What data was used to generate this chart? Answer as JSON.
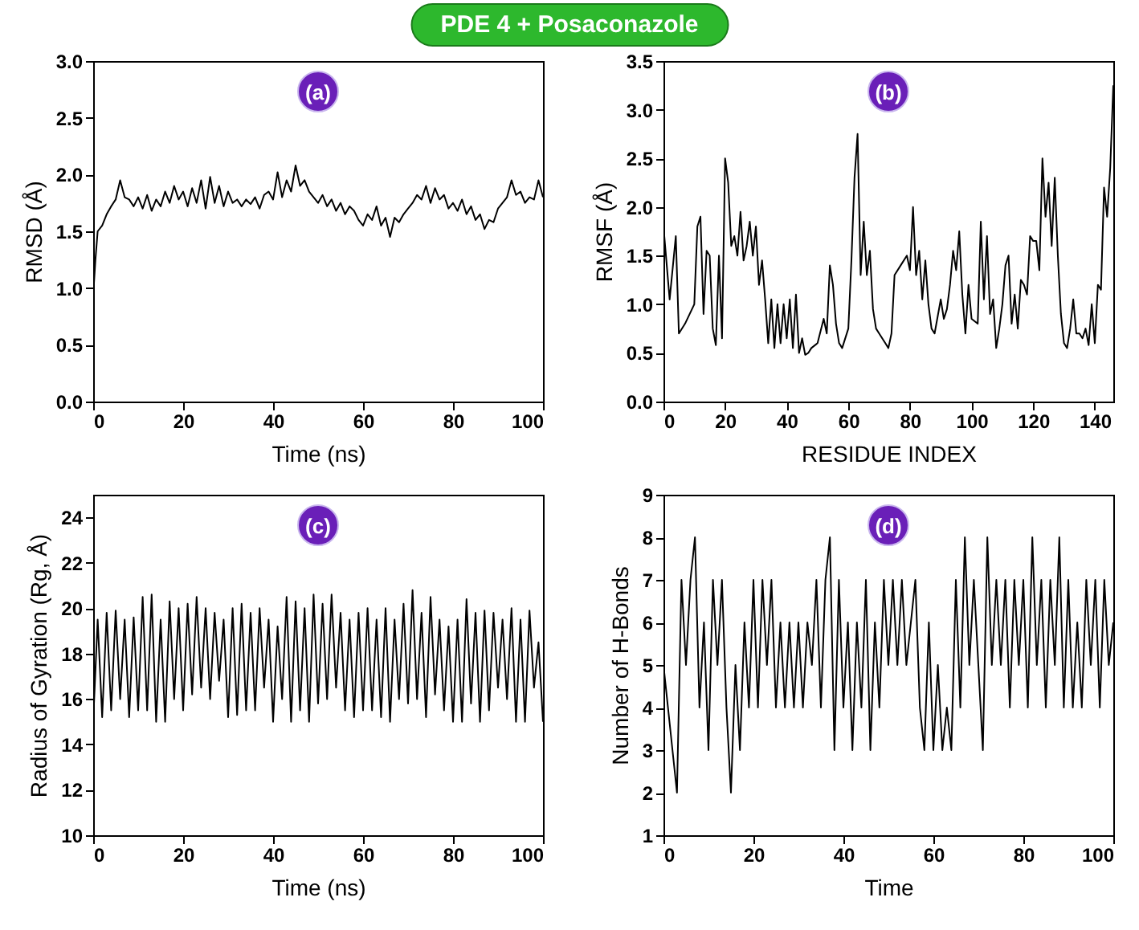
{
  "chart_data": [
    {
      "type": "line",
      "title": "PDE 4 + Posaconazole",
      "annotations": [
        "(a)"
      ],
      "xlabel": "Time (ns)",
      "ylabel": "RMSD (Å)",
      "color": "#000000",
      "xlim": [
        0,
        100
      ],
      "ylim": [
        0,
        3
      ],
      "xticks": [
        0,
        20,
        40,
        60,
        80,
        100
      ],
      "yticks": [
        {
          "value": 0,
          "label": "0.0"
        },
        {
          "value": 0.5,
          "label": "0.5"
        },
        {
          "value": 1,
          "label": "1.0"
        },
        {
          "value": 1.5,
          "label": "1.5"
        },
        {
          "value": 2,
          "label": "2.0"
        },
        {
          "value": 2.5,
          "label": "2.5"
        },
        {
          "value": 3,
          "label": "3.0"
        }
      ],
      "x": [
        0,
        0.5,
        1,
        2,
        3,
        4,
        5,
        6,
        7,
        8,
        9,
        10,
        11,
        12,
        13,
        14,
        15,
        16,
        17,
        18,
        19,
        20,
        21,
        22,
        23,
        24,
        25,
        26,
        27,
        28,
        29,
        30,
        31,
        32,
        33,
        34,
        35,
        36,
        37,
        38,
        39,
        40,
        41,
        42,
        43,
        44,
        45,
        46,
        47,
        48,
        49,
        50,
        51,
        52,
        53,
        54,
        55,
        56,
        57,
        58,
        59,
        60,
        61,
        62,
        63,
        64,
        65,
        66,
        67,
        68,
        69,
        70,
        71,
        72,
        73,
        74,
        75,
        76,
        77,
        78,
        79,
        80,
        81,
        82,
        83,
        84,
        85,
        86,
        87,
        88,
        89,
        90,
        91,
        92,
        93,
        94,
        95,
        96,
        97,
        98,
        99,
        100
      ],
      "values": [
        0.93,
        1.25,
        1.5,
        1.55,
        1.65,
        1.72,
        1.78,
        1.95,
        1.8,
        1.78,
        1.72,
        1.8,
        1.7,
        1.82,
        1.68,
        1.78,
        1.72,
        1.85,
        1.75,
        1.9,
        1.78,
        1.85,
        1.72,
        1.88,
        1.75,
        1.95,
        1.7,
        1.98,
        1.75,
        1.9,
        1.72,
        1.85,
        1.75,
        1.78,
        1.72,
        1.78,
        1.74,
        1.8,
        1.7,
        1.82,
        1.85,
        1.78,
        2.02,
        1.8,
        1.95,
        1.85,
        2.08,
        1.9,
        1.95,
        1.85,
        1.8,
        1.75,
        1.82,
        1.72,
        1.78,
        1.68,
        1.75,
        1.65,
        1.72,
        1.68,
        1.6,
        1.55,
        1.65,
        1.6,
        1.72,
        1.55,
        1.62,
        1.45,
        1.62,
        1.58,
        1.65,
        1.7,
        1.75,
        1.82,
        1.78,
        1.9,
        1.75,
        1.88,
        1.78,
        1.82,
        1.7,
        1.75,
        1.68,
        1.78,
        1.65,
        1.72,
        1.6,
        1.65,
        1.52,
        1.6,
        1.58,
        1.7,
        1.75,
        1.8,
        1.95,
        1.82,
        1.85,
        1.75,
        1.8,
        1.78,
        1.95,
        1.8
      ]
    },
    {
      "type": "line",
      "annotations": [
        "(b)"
      ],
      "xlabel": "RESIDUE INDEX",
      "ylabel": "RMSF (Å)",
      "color": "#000000",
      "xlim": [
        0,
        146
      ],
      "ylim": [
        0,
        3.5
      ],
      "xticks": [
        0,
        20,
        40,
        60,
        80,
        100,
        120,
        140
      ],
      "yticks": [
        {
          "value": 0,
          "label": "0.0"
        },
        {
          "value": 0.5,
          "label": "0.5"
        },
        {
          "value": 1,
          "label": "1.0"
        },
        {
          "value": 1.5,
          "label": "1.5"
        },
        {
          "value": 2,
          "label": "2.0"
        },
        {
          "value": 2.5,
          "label": "2.5"
        },
        {
          "value": 3,
          "label": "3.0"
        },
        {
          "value": 3.5,
          "label": "3.5"
        }
      ],
      "x": [
        0,
        2,
        4,
        5,
        7,
        10,
        11,
        12,
        13,
        14,
        15,
        16,
        17,
        18,
        19,
        20,
        21,
        22,
        23,
        24,
        25,
        26,
        27,
        28,
        29,
        30,
        31,
        32,
        33,
        34,
        35,
        36,
        37,
        38,
        39,
        40,
        41,
        42,
        43,
        44,
        45,
        46,
        47,
        48,
        50,
        52,
        53,
        54,
        55,
        56,
        57,
        58,
        60,
        61,
        62,
        63,
        64,
        65,
        66,
        67,
        68,
        69,
        70,
        72,
        73,
        74,
        75,
        77,
        79,
        80,
        81,
        82,
        83,
        84,
        85,
        86,
        87,
        88,
        90,
        91,
        92,
        93,
        94,
        95,
        96,
        97,
        98,
        99,
        100,
        102,
        103,
        104,
        105,
        106,
        107,
        108,
        109,
        110,
        111,
        112,
        113,
        114,
        115,
        116,
        117,
        118,
        119,
        120,
        121,
        122,
        123,
        124,
        125,
        126,
        127,
        128,
        129,
        130,
        131,
        132,
        133,
        134,
        135,
        136,
        137,
        138,
        139,
        140,
        141,
        142,
        143,
        144,
        145,
        146
      ],
      "values": [
        1.8,
        1.05,
        1.7,
        0.7,
        0.8,
        1.0,
        1.8,
        1.9,
        0.9,
        1.55,
        1.5,
        0.75,
        0.58,
        1.5,
        0.65,
        2.5,
        2.25,
        1.6,
        1.7,
        1.5,
        1.95,
        1.45,
        1.6,
        1.85,
        1.5,
        1.8,
        1.2,
        1.45,
        1.05,
        0.6,
        1.05,
        0.55,
        1.0,
        0.6,
        1.0,
        0.65,
        1.05,
        0.55,
        1.1,
        0.5,
        0.65,
        0.48,
        0.5,
        0.55,
        0.6,
        0.85,
        0.7,
        1.4,
        1.2,
        0.8,
        0.6,
        0.55,
        0.75,
        1.45,
        2.3,
        2.75,
        1.3,
        1.85,
        1.3,
        1.55,
        0.95,
        0.75,
        0.7,
        0.6,
        0.55,
        0.7,
        1.3,
        1.4,
        1.5,
        1.35,
        2.0,
        1.3,
        1.55,
        1.05,
        1.45,
        1.0,
        0.75,
        0.7,
        1.05,
        0.85,
        0.95,
        1.2,
        1.55,
        1.35,
        1.75,
        1.1,
        0.7,
        1.2,
        0.85,
        0.8,
        1.85,
        1.05,
        1.7,
        0.9,
        1.05,
        0.55,
        0.75,
        1.0,
        1.4,
        1.5,
        0.8,
        1.1,
        0.75,
        1.25,
        1.2,
        1.1,
        1.7,
        1.65,
        1.65,
        1.35,
        2.5,
        1.9,
        2.25,
        1.6,
        2.3,
        1.5,
        0.9,
        0.6,
        0.55,
        0.75,
        1.05,
        0.7,
        0.7,
        0.65,
        0.75,
        0.58,
        1.0,
        0.6,
        1.2,
        1.15,
        2.2,
        1.9,
        2.4,
        3.25
      ]
    },
    {
      "type": "line",
      "annotations": [
        "(c)"
      ],
      "xlabel": "Time (ns)",
      "ylabel": "Radius of Gyration (Rg, Å)",
      "color": "#000000",
      "xlim": [
        0,
        100
      ],
      "ylim": [
        10,
        25
      ],
      "xticks": [
        0,
        20,
        40,
        60,
        80,
        100
      ],
      "yticks": [
        10,
        12,
        14,
        16,
        18,
        20,
        22,
        24
      ],
      "x": [
        0,
        1,
        2,
        3,
        4,
        5,
        6,
        7,
        8,
        9,
        10,
        11,
        12,
        13,
        14,
        15,
        16,
        17,
        18,
        19,
        20,
        21,
        22,
        23,
        24,
        25,
        26,
        27,
        28,
        29,
        30,
        31,
        32,
        33,
        34,
        35,
        36,
        37,
        38,
        39,
        40,
        41,
        42,
        43,
        44,
        45,
        46,
        47,
        48,
        49,
        50,
        51,
        52,
        53,
        54,
        55,
        56,
        57,
        58,
        59,
        60,
        61,
        62,
        63,
        64,
        65,
        66,
        67,
        68,
        69,
        70,
        71,
        72,
        73,
        74,
        75,
        76,
        77,
        78,
        79,
        80,
        81,
        82,
        83,
        84,
        85,
        86,
        87,
        88,
        89,
        90,
        91,
        92,
        93,
        94,
        95,
        96,
        97,
        98,
        99,
        100
      ],
      "values": [
        15,
        19.5,
        15.2,
        19.8,
        15.5,
        19.9,
        16,
        19.5,
        15.2,
        19.6,
        15.5,
        20.5,
        15.5,
        20.6,
        15,
        19.5,
        15,
        20.3,
        16,
        20,
        15.5,
        20.2,
        16.2,
        20.5,
        16.5,
        20,
        16,
        19.8,
        16.8,
        19.5,
        15.2,
        20,
        15.3,
        20.2,
        15.5,
        19.8,
        15.5,
        20,
        16.5,
        19.5,
        15,
        19.2,
        16,
        20.5,
        15,
        20.3,
        15.5,
        20,
        15,
        20.6,
        15.8,
        20.2,
        16,
        20.6,
        16.5,
        19.8,
        15.5,
        19.5,
        15.2,
        19.8,
        15.5,
        20,
        15.5,
        19.5,
        15.2,
        20,
        15,
        19.5,
        16,
        20.2,
        15.8,
        20.8,
        16,
        19.8,
        15.2,
        20.5,
        16.2,
        19.5,
        15.5,
        19.2,
        15,
        19.5,
        15,
        20.4,
        15.8,
        19.8,
        15,
        19.9,
        15.5,
        19.8,
        16.5,
        19.5,
        16,
        20,
        15,
        19.5,
        15,
        19.9,
        16.5,
        18.5,
        15
      ]
    },
    {
      "type": "line",
      "annotations": [
        "(d)"
      ],
      "xlabel": "Time",
      "ylabel": "Number of H-Bonds",
      "color": "#000000",
      "xlim": [
        0,
        100
      ],
      "ylim": [
        1,
        9
      ],
      "xticks": [
        0,
        20,
        40,
        60,
        80,
        100
      ],
      "yticks": [
        1,
        2,
        3,
        4,
        5,
        6,
        7,
        8,
        9
      ],
      "x": [
        0,
        1,
        2,
        3,
        4,
        5,
        6,
        7,
        8,
        9,
        10,
        11,
        12,
        13,
        14,
        15,
        16,
        17,
        18,
        19,
        20,
        21,
        22,
        23,
        24,
        25,
        26,
        27,
        28,
        29,
        30,
        31,
        32,
        33,
        34,
        35,
        36,
        37,
        38,
        39,
        40,
        41,
        42,
        43,
        44,
        45,
        46,
        47,
        48,
        49,
        50,
        51,
        52,
        53,
        54,
        55,
        56,
        57,
        58,
        59,
        60,
        61,
        62,
        63,
        64,
        65,
        66,
        67,
        68,
        69,
        70,
        71,
        72,
        73,
        74,
        75,
        76,
        77,
        78,
        79,
        80,
        81,
        82,
        83,
        84,
        85,
        86,
        87,
        88,
        89,
        90,
        91,
        92,
        93,
        94,
        95,
        96,
        97,
        98,
        99,
        100
      ],
      "values": [
        5,
        4,
        3,
        2,
        7,
        5,
        7,
        8,
        4,
        6,
        3,
        7,
        5,
        7,
        4,
        2,
        5,
        3,
        6,
        4,
        7,
        4,
        7,
        5,
        7,
        4,
        6,
        4,
        6,
        4,
        6,
        4,
        6,
        5,
        7,
        4,
        7,
        8,
        3,
        7,
        4,
        6,
        3,
        6,
        4,
        7,
        3,
        6,
        4,
        7,
        5,
        7,
        5,
        7,
        5,
        6,
        7,
        4,
        3,
        6,
        3,
        5,
        3,
        4,
        3,
        7,
        4,
        8,
        5,
        7,
        5,
        3,
        8,
        5,
        7,
        5,
        7,
        4,
        7,
        5,
        7,
        4,
        8,
        5,
        7,
        4,
        7,
        5,
        8,
        4,
        7,
        4,
        6,
        4,
        7,
        5,
        7,
        4,
        7,
        5,
        6
      ]
    }
  ]
}
